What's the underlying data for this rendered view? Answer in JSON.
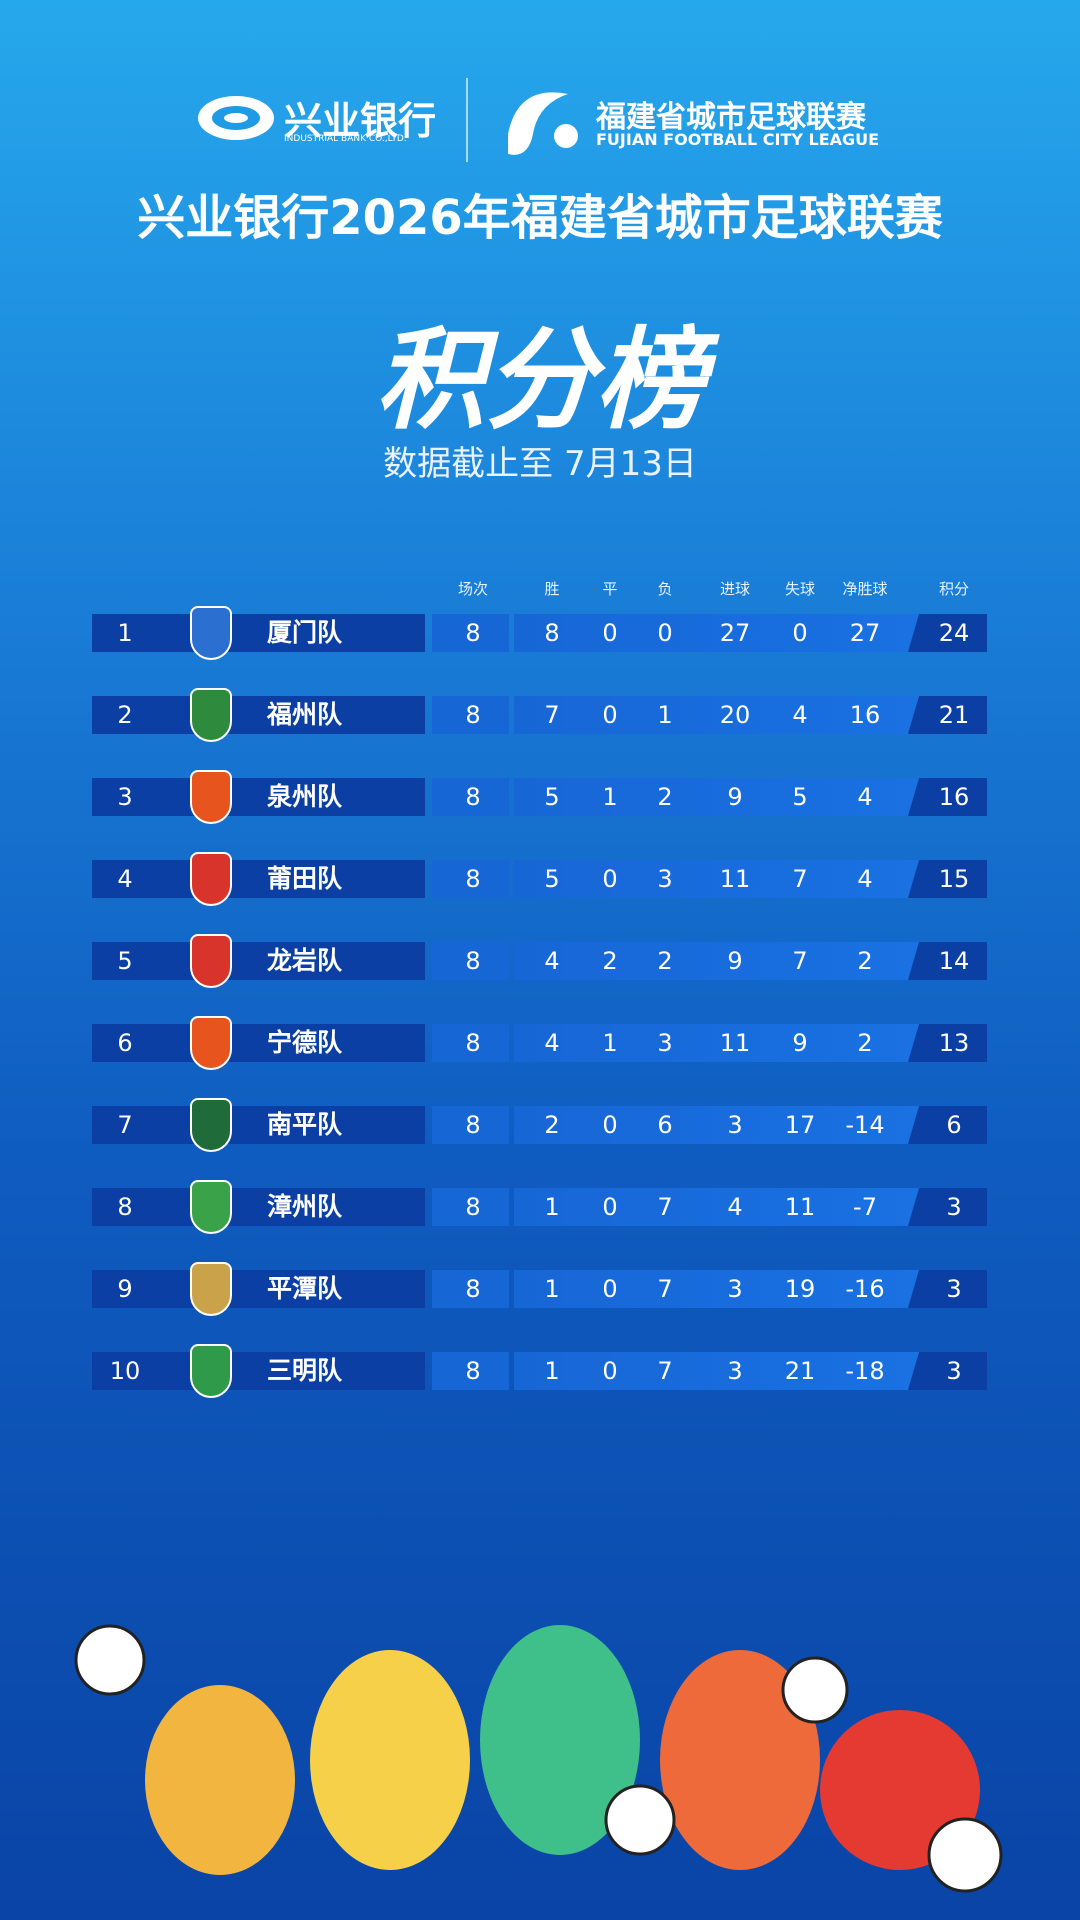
{
  "header": {
    "sponsor_cn": "兴业银行",
    "sponsor_en": "INDUSTRIAL BANK CO.,LTD.",
    "league_cn": "福建省城市足球联赛",
    "league_en": "FUJIAN FOOTBALL CITY LEAGUE"
  },
  "title": "兴业银行2026年福建省城市足球联赛",
  "heading": "积分榜",
  "subtitle": "数据截止至 7月13日",
  "table": {
    "columns": [
      "场次",
      "胜",
      "平",
      "负",
      "进球",
      "失球",
      "净胜球",
      "积分"
    ],
    "rows": [
      [
        1,
        "厦门队",
        8,
        8,
        0,
        0,
        27,
        0,
        27,
        24
      ],
      [
        2,
        "福州队",
        8,
        7,
        0,
        1,
        20,
        4,
        16,
        21
      ],
      [
        3,
        "泉州队",
        8,
        5,
        1,
        2,
        9,
        5,
        4,
        16
      ],
      [
        4,
        "莆田队",
        8,
        5,
        0,
        3,
        11,
        7,
        4,
        15
      ],
      [
        5,
        "龙岩队",
        8,
        4,
        2,
        2,
        9,
        7,
        2,
        14
      ],
      [
        6,
        "宁德队",
        8,
        4,
        1,
        3,
        11,
        9,
        2,
        13
      ],
      [
        7,
        "南平队",
        8,
        2,
        0,
        6,
        3,
        17,
        -14,
        6
      ],
      [
        8,
        "漳州队",
        8,
        1,
        0,
        7,
        4,
        11,
        -7,
        3
      ],
      [
        9,
        "平潭队",
        8,
        1,
        0,
        7,
        3,
        19,
        -16,
        3
      ],
      [
        10,
        "三明队",
        8,
        1,
        0,
        7,
        3,
        21,
        -18,
        3
      ]
    ]
  }
}
